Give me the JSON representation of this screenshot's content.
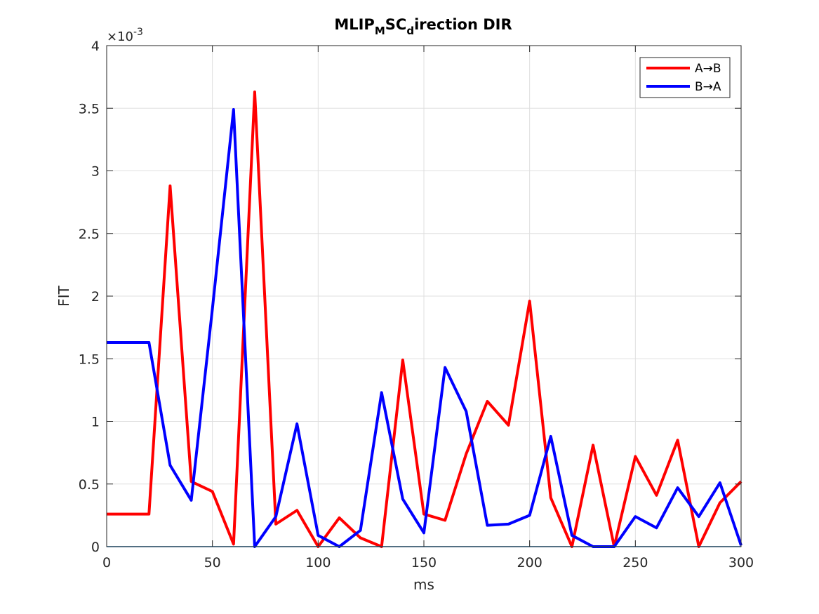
{
  "chart_data": {
    "type": "line",
    "title": {
      "main": "MLIP",
      "sub1": "M",
      "mid": "SC",
      "sub2": "d",
      "rest": "irection DIR"
    },
    "xlabel": "ms",
    "ylabel": "FIT",
    "y_exponent_label": "×10",
    "y_exponent_power": "-3",
    "xlim": [
      0,
      300
    ],
    "ylim": [
      0,
      4
    ],
    "x_ticks": [
      0,
      50,
      100,
      150,
      200,
      250,
      300
    ],
    "x_tick_labels": [
      "0",
      "50",
      "100",
      "150",
      "200",
      "250",
      "300"
    ],
    "y_ticks": [
      0,
      0.5,
      1,
      1.5,
      2,
      2.5,
      3,
      3.5,
      4
    ],
    "y_tick_labels": [
      "0",
      "0.5",
      "1",
      "1.5",
      "2",
      "2.5",
      "3",
      "3.5",
      "4"
    ],
    "grid": true,
    "legend_position": "top-right",
    "x": [
      0,
      10,
      20,
      30,
      40,
      50,
      60,
      70,
      80,
      90,
      100,
      110,
      120,
      130,
      140,
      150,
      160,
      170,
      180,
      190,
      200,
      210,
      220,
      230,
      240,
      250,
      260,
      270,
      280,
      290,
      300
    ],
    "series": [
      {
        "name": "A→B",
        "color": "#ff0000",
        "values": [
          0.26,
          0.26,
          0.26,
          2.88,
          0.52,
          0.44,
          0.02,
          3.63,
          0.18,
          0.29,
          0.0,
          0.23,
          0.07,
          0.0,
          1.49,
          0.26,
          0.21,
          0.74,
          1.16,
          0.97,
          1.96,
          0.39,
          0.0,
          0.81,
          0.0,
          0.72,
          0.41,
          0.85,
          0.0,
          0.35,
          0.52
        ]
      },
      {
        "name": "B→A",
        "color": "#0000ff",
        "values": [
          1.63,
          1.63,
          1.63,
          0.65,
          0.37,
          1.9,
          3.49,
          0.0,
          0.24,
          0.98,
          0.09,
          0.0,
          0.13,
          1.23,
          0.38,
          0.11,
          1.43,
          1.08,
          0.17,
          0.18,
          0.25,
          0.88,
          0.09,
          0.0,
          0.0,
          0.24,
          0.15,
          0.47,
          0.24,
          0.51,
          0.01
        ]
      }
    ]
  }
}
